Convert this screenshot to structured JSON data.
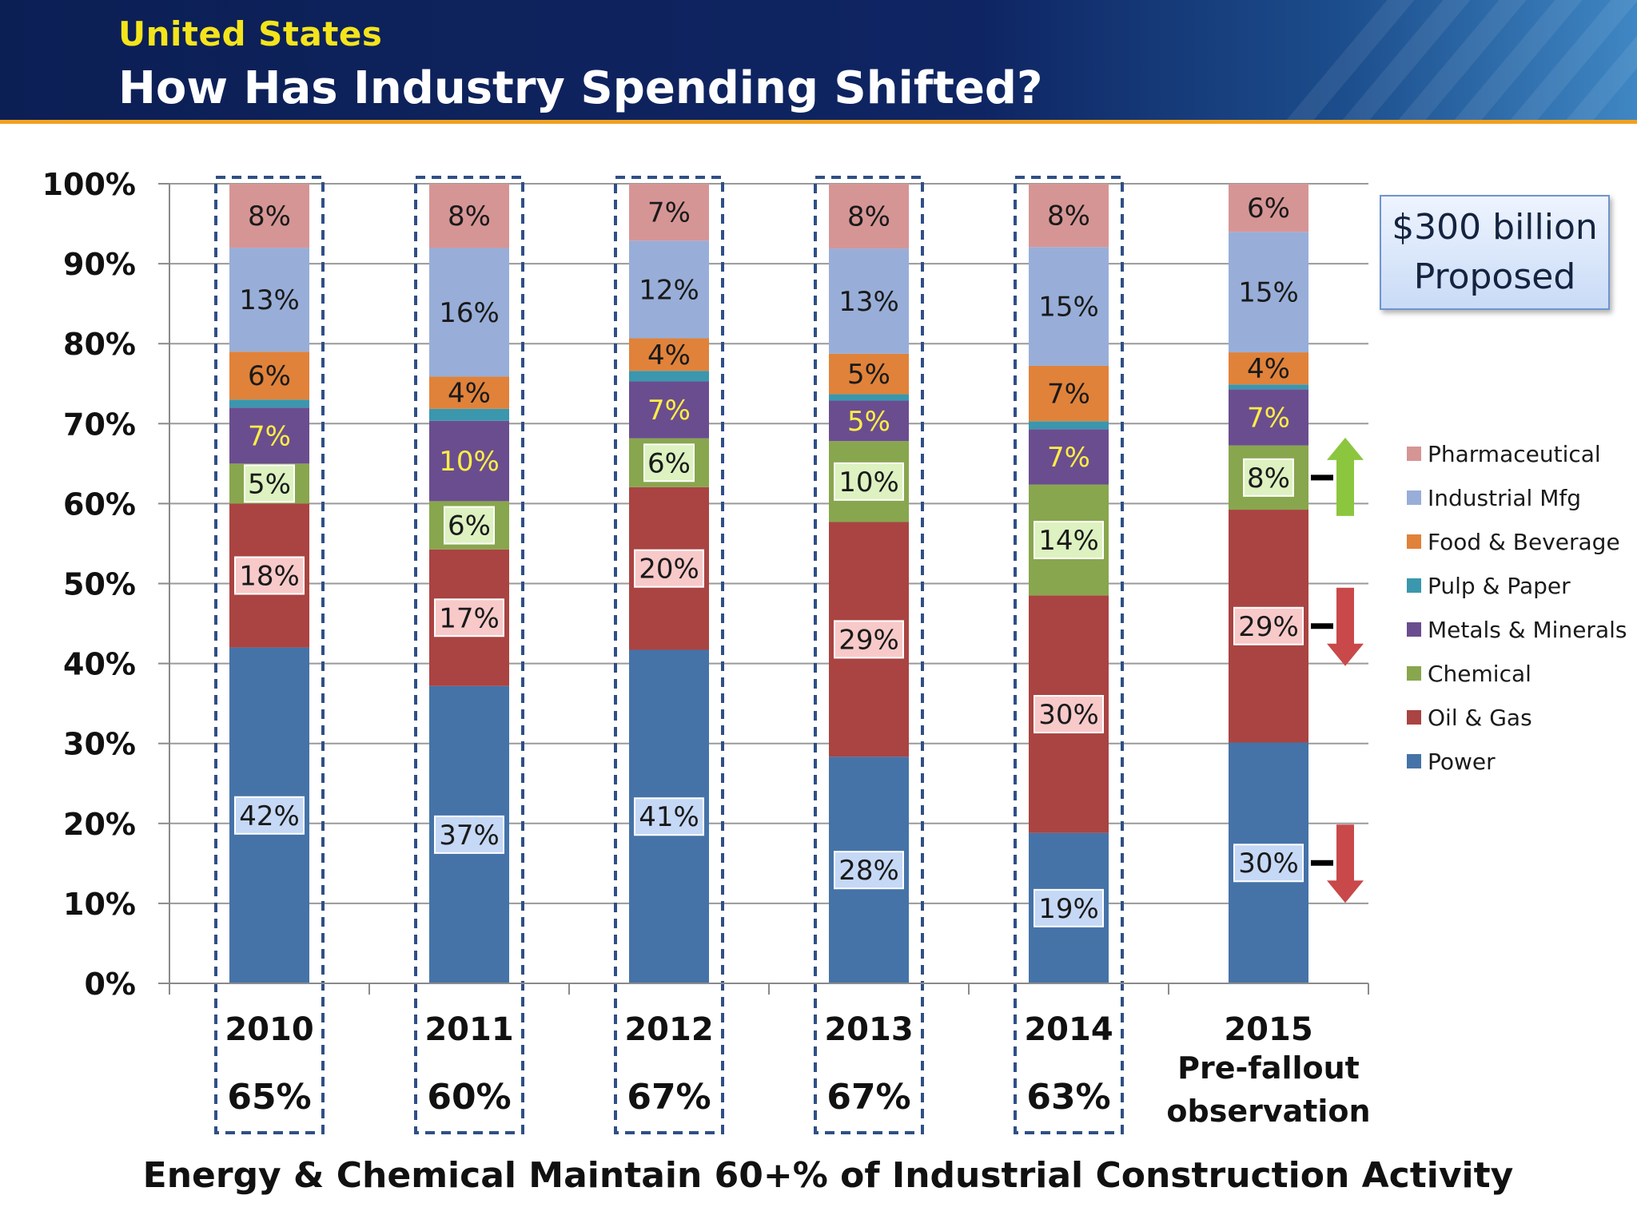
{
  "header": {
    "subtitle": "United States",
    "title": "How Has Industry Spending Shifted?"
  },
  "callout": {
    "line1": "$300 billion",
    "line2": "Proposed"
  },
  "footer": "Energy & Chemical Maintain 60+% of Industrial Construction Activity",
  "chart_data": {
    "type": "bar",
    "stacked": true,
    "ylim": [
      0,
      100
    ],
    "y_ticks": [
      "0%",
      "10%",
      "20%",
      "30%",
      "40%",
      "50%",
      "60%",
      "70%",
      "80%",
      "90%",
      "100%"
    ],
    "legend_position": "right",
    "categories": [
      {
        "label": "2010",
        "share": "65%",
        "highlighted": true
      },
      {
        "label": "2011",
        "share": "60%",
        "highlighted": true
      },
      {
        "label": "2012",
        "share": "67%",
        "highlighted": true
      },
      {
        "label": "2013",
        "share": "67%",
        "highlighted": true
      },
      {
        "label": "2014",
        "share": "63%",
        "highlighted": true
      },
      {
        "label": "2015",
        "note_line1": "Pre-fallout",
        "note_line2": "observation",
        "highlighted": false
      }
    ],
    "series": [
      {
        "name": "Power",
        "color": "#4573a8",
        "label_fill": "#c5d8f5",
        "values": [
          42,
          37,
          41,
          28,
          19,
          30
        ],
        "labels": [
          "42%",
          "37%",
          "41%",
          "28%",
          "19%",
          "30%"
        ]
      },
      {
        "name": "Oil & Gas",
        "color": "#a94442",
        "label_fill": "#f8c9c9",
        "values": [
          18,
          17,
          20,
          29,
          30,
          29
        ],
        "labels": [
          "18%",
          "17%",
          "20%",
          "29%",
          "30%",
          "29%"
        ]
      },
      {
        "name": "Chemical",
        "color": "#88a64d",
        "label_fill": "#ddf2c0",
        "values": [
          5,
          6,
          6,
          10,
          14,
          8
        ],
        "labels": [
          "5%",
          "6%",
          "6%",
          "10%",
          "14%",
          "8%"
        ]
      },
      {
        "name": "Metals & Minerals",
        "color": "#6a4d8f",
        "label_color": "#ffee44",
        "values": [
          7,
          10,
          7,
          5,
          7,
          7
        ],
        "labels": [
          "7%",
          "10%",
          "7%",
          "5%",
          "7%",
          "7%"
        ]
      },
      {
        "name": "Pulp & Paper",
        "color": "#3a97ad",
        "values": [
          1,
          1.5,
          1.3,
          0.8,
          1,
          0.6
        ],
        "labels": [
          "",
          "",
          "",
          "",
          "",
          ""
        ]
      },
      {
        "name": "Food & Beverage",
        "color": "#e0823a",
        "values": [
          6,
          4,
          4,
          5,
          7,
          4
        ],
        "labels": [
          "6%",
          "4%",
          "4%",
          "5%",
          "7%",
          "4%"
        ]
      },
      {
        "name": "Industrial Mfg",
        "color": "#98aed8",
        "values": [
          13,
          16,
          12,
          13,
          15,
          15
        ],
        "labels": [
          "13%",
          "16%",
          "12%",
          "13%",
          "15%",
          "15%"
        ]
      },
      {
        "name": "Pharmaceutical",
        "color": "#d69595",
        "values": [
          8,
          8,
          7,
          8,
          8,
          6
        ],
        "labels": [
          "8%",
          "8%",
          "7%",
          "8%",
          "8%",
          "6%"
        ]
      }
    ],
    "legend_order": [
      "Pharmaceutical",
      "Industrial Mfg",
      "Food & Beverage",
      "Pulp & Paper",
      "Metals & Minerals",
      "Chemical",
      "Oil & Gas",
      "Power"
    ],
    "trend_arrows": [
      {
        "series": "Chemical",
        "direction": "up",
        "color": "#8cc63f"
      },
      {
        "series": "Oil & Gas",
        "direction": "down",
        "color": "#c9484a"
      },
      {
        "series": "Power",
        "direction": "down",
        "color": "#c9484a"
      }
    ]
  }
}
